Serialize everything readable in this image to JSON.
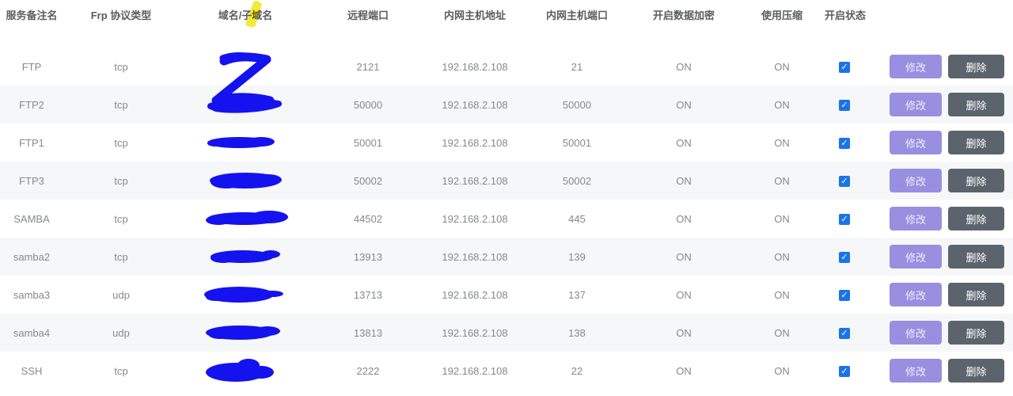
{
  "header": {
    "columns": [
      "服务备注名",
      "Frp 协议类型",
      "域名/子域名",
      "远程端口",
      "内网主机地址",
      "内网主机端口",
      "开启数据加密",
      "使用压缩",
      "开启状态"
    ]
  },
  "actions": {
    "edit_label": "修改",
    "delete_label": "删除"
  },
  "checkbox_glyph": "✓",
  "rows": [
    {
      "name": "FTP",
      "protocol": "tcp",
      "remote_port": "2121",
      "host": "192.168.2.108",
      "host_port": "21",
      "encryption": "ON",
      "compression": "ON",
      "enabled": true
    },
    {
      "name": "FTP2",
      "protocol": "tcp",
      "remote_port": "50000",
      "host": "192.168.2.108",
      "host_port": "50000",
      "encryption": "ON",
      "compression": "ON",
      "enabled": true
    },
    {
      "name": "FTP1",
      "protocol": "tcp",
      "remote_port": "50001",
      "host": "192.168.2.108",
      "host_port": "50001",
      "encryption": "ON",
      "compression": "ON",
      "enabled": true
    },
    {
      "name": "FTP3",
      "protocol": "tcp",
      "remote_port": "50002",
      "host": "192.168.2.108",
      "host_port": "50002",
      "encryption": "ON",
      "compression": "ON",
      "enabled": true
    },
    {
      "name": "SAMBA",
      "protocol": "tcp",
      "remote_port": "44502",
      "host": "192.168.2.108",
      "host_port": "445",
      "encryption": "ON",
      "compression": "ON",
      "enabled": true
    },
    {
      "name": "samba2",
      "protocol": "tcp",
      "remote_port": "13913",
      "host": "192.168.2.108",
      "host_port": "139",
      "encryption": "ON",
      "compression": "ON",
      "enabled": true
    },
    {
      "name": "samba3",
      "protocol": "udp",
      "remote_port": "13713",
      "host": "192.168.2.108",
      "host_port": "137",
      "encryption": "ON",
      "compression": "ON",
      "enabled": true
    },
    {
      "name": "samba4",
      "protocol": "udp",
      "remote_port": "13813",
      "host": "192.168.2.108",
      "host_port": "138",
      "encryption": "ON",
      "compression": "ON",
      "enabled": true
    },
    {
      "name": "SSH",
      "protocol": "tcp",
      "remote_port": "2222",
      "host": "192.168.2.108",
      "host_port": "22",
      "encryption": "ON",
      "compression": "ON",
      "enabled": true
    }
  ],
  "colors": {
    "edit_button": "#988fe0",
    "delete_button": "#5b646c",
    "checkbox": "#1a73e8",
    "row_stripe": "#f6f7f8",
    "scribble_blue": "#1512f0",
    "highlight_yellow": "#f0e616",
    "header_text": "#5a5d63",
    "cell_text": "#85898f"
  }
}
